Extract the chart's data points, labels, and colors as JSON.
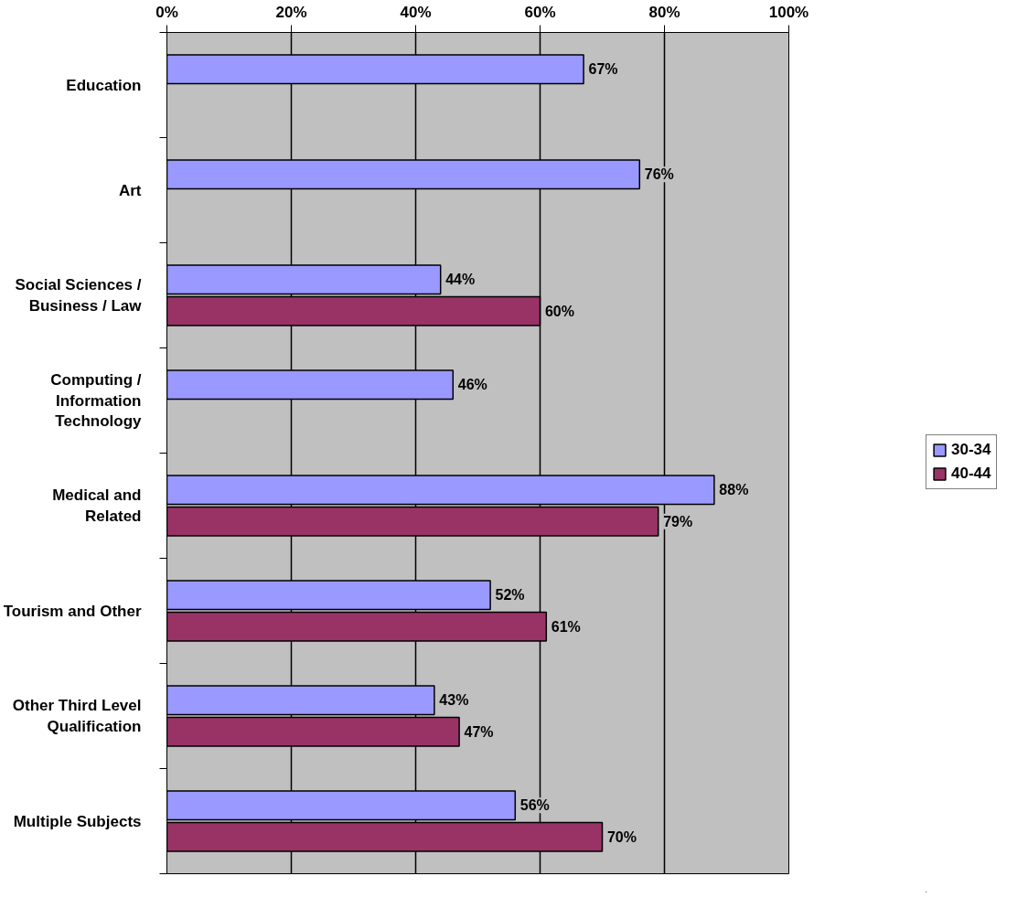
{
  "chart_data": {
    "type": "bar",
    "orientation": "horizontal",
    "categories": [
      "Education",
      "Art",
      "Social Sciences / Business / Law",
      "Computing / Information Technology",
      "Medical and Related",
      "Tourism and Other",
      "Other Third Level Qualification",
      "Multiple Subjects"
    ],
    "series": [
      {
        "name": "30-34",
        "color": "#9999ff",
        "values": [
          67,
          76,
          44,
          46,
          88,
          52,
          43,
          56
        ],
        "value_labels": [
          "67%",
          "76%",
          "44%",
          "46%",
          "88%",
          "52%",
          "43%",
          "56%"
        ]
      },
      {
        "name": "40-44",
        "color": "#993366",
        "values": [
          null,
          null,
          60,
          null,
          79,
          61,
          47,
          70
        ],
        "value_labels": [
          null,
          null,
          "60%",
          null,
          "79%",
          "61%",
          "47%",
          "70%"
        ]
      }
    ],
    "xlim": [
      0,
      100
    ],
    "xticks": [
      {
        "value": 0,
        "label": "0%"
      },
      {
        "value": 20,
        "label": "20%"
      },
      {
        "value": 40,
        "label": "40%"
      },
      {
        "value": 60,
        "label": "60%"
      },
      {
        "value": 80,
        "label": "80%"
      },
      {
        "value": 100,
        "label": "100%"
      }
    ],
    "grid": "x",
    "legend": "right"
  }
}
